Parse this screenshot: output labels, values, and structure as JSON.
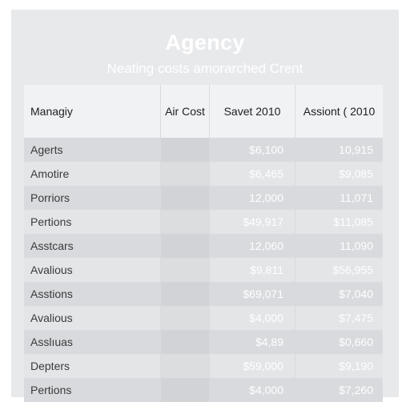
{
  "title": "Agency",
  "subtitle": "Neating costs amorarched Crent",
  "columns": [
    "Managiy",
    "Air Cost",
    "Savet 2010",
    "Assiont ( 2010"
  ],
  "rows": [
    {
      "name": "Agerts",
      "air": "",
      "save": "$6,100",
      "assist": "10,915"
    },
    {
      "name": "Amotire",
      "air": "",
      "save": "$6,465",
      "assist": "$9,085"
    },
    {
      "name": "Porriors",
      "air": "",
      "save": "12,000",
      "assist": "11,071"
    },
    {
      "name": "Pertions",
      "air": "",
      "save": "$49,917",
      "assist": "$11,085"
    },
    {
      "name": "Asstcars",
      "air": "",
      "save": "12,060",
      "assist": "11,090"
    },
    {
      "name": "Avalious",
      "air": "",
      "save": "$9,811",
      "assist": "$56,955"
    },
    {
      "name": "Asstions",
      "air": "",
      "save": "$69,071",
      "assist": "$7,040"
    },
    {
      "name": "Avalious",
      "air": "",
      "save": "$4,000",
      "assist": "$7,475"
    },
    {
      "name": "Asslıuas",
      "air": "",
      "save": "$4,89",
      "assist": "$0,660"
    },
    {
      "name": "Depters",
      "air": "",
      "save": "$59,000",
      "assist": "$9,190"
    },
    {
      "name": "Pertions",
      "air": "",
      "save": "$4,000",
      "assist": "$7,260"
    }
  ]
}
